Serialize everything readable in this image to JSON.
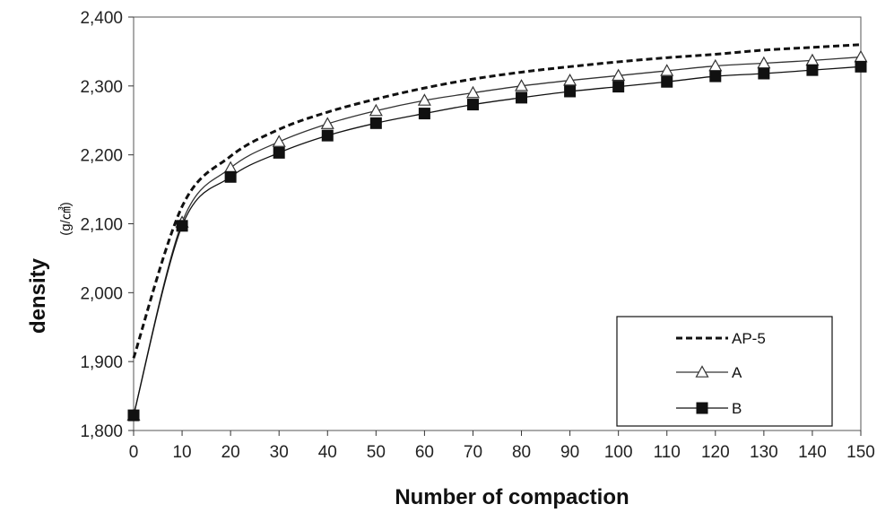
{
  "chart_data": {
    "type": "line",
    "xlabel": "Number of compaction",
    "ylabel": "density",
    "ylabel_unit": "(g/㎤)",
    "x": [
      0,
      10,
      20,
      30,
      40,
      50,
      60,
      70,
      80,
      90,
      100,
      110,
      120,
      130,
      140,
      150
    ],
    "x_ticks": [
      "0",
      "10",
      "20",
      "30",
      "40",
      "50",
      "60",
      "70",
      "80",
      "90",
      "100",
      "110",
      "120",
      "130",
      "140",
      "150"
    ],
    "y_ticks": [
      "1,800",
      "1,900",
      "2,000",
      "2,100",
      "2,200",
      "2,300",
      "2,400"
    ],
    "xlim": [
      0,
      150
    ],
    "ylim": [
      1800,
      2400
    ],
    "grid": false,
    "legend_position": "bottom-right",
    "series": [
      {
        "name": "AP-5",
        "style": "dashed",
        "marker": "none",
        "color": "#111111",
        "values": [
          1905,
          2125,
          2198,
          2237,
          2262,
          2281,
          2297,
          2310,
          2320,
          2328,
          2335,
          2341,
          2346,
          2352,
          2356,
          2360
        ]
      },
      {
        "name": "A",
        "style": "solid",
        "marker": "triangle-open",
        "color": "#333333",
        "values": [
          1822,
          2102,
          2181,
          2219,
          2245,
          2264,
          2279,
          2290,
          2300,
          2308,
          2315,
          2322,
          2329,
          2333,
          2337,
          2342
        ]
      },
      {
        "name": "B",
        "style": "solid",
        "marker": "square-filled",
        "color": "#111111",
        "values": [
          1822,
          2097,
          2168,
          2203,
          2228,
          2246,
          2260,
          2273,
          2283,
          2292,
          2299,
          2306,
          2314,
          2318,
          2323,
          2328
        ]
      }
    ]
  }
}
